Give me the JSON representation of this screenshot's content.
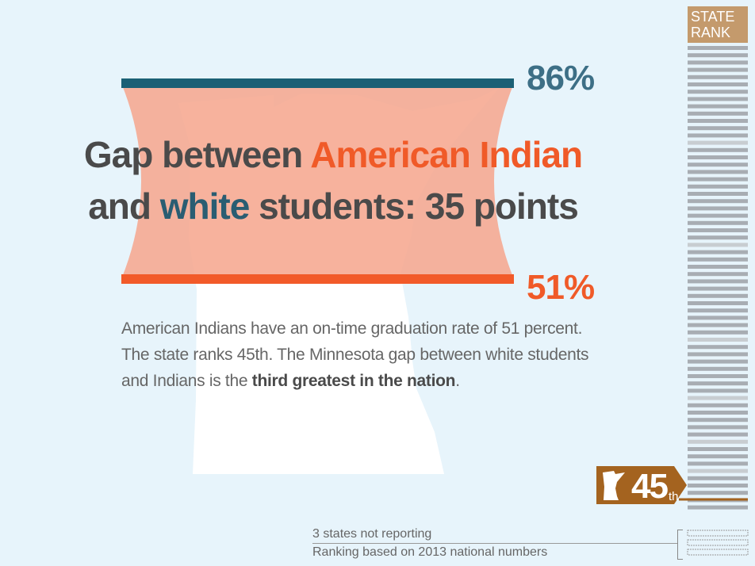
{
  "headline": {
    "part1": "Gap between ",
    "highlight1": "American Indian",
    "part2": "and ",
    "highlight2": "white",
    "part3": " students: 35 points"
  },
  "body": {
    "text": "American Indians have an on-time graduation rate of 51 percent. The state ranks 45th. The Minnesota gap between white students and Indians is the ",
    "emphasis": "third greatest in the nation",
    "end": "."
  },
  "state_rank": {
    "label_line1": "STATE",
    "label_line2": "RANK",
    "rank_number": "45",
    "rank_suffix": "th",
    "total_ranked": 47,
    "not_reporting": 3
  },
  "footnotes": {
    "line1": "3 states not reporting",
    "line2": "Ranking based on 2013 national numbers"
  },
  "colors": {
    "background": "#e7f4fb",
    "white_bar": "#1b6075",
    "indian_bar": "#f25a29",
    "gap_fill": "#f6a58c",
    "rank_bar": "#a8adb3",
    "rank_bar_light": "#c8cdd1",
    "badge": "#a4631f"
  },
  "chart_data": {
    "type": "bar",
    "categories": [
      "white students",
      "American Indian students"
    ],
    "values": [
      86,
      51
    ],
    "value_labels": [
      "86%",
      "51%"
    ],
    "ylim": [
      0,
      100
    ],
    "gap": 35
  }
}
